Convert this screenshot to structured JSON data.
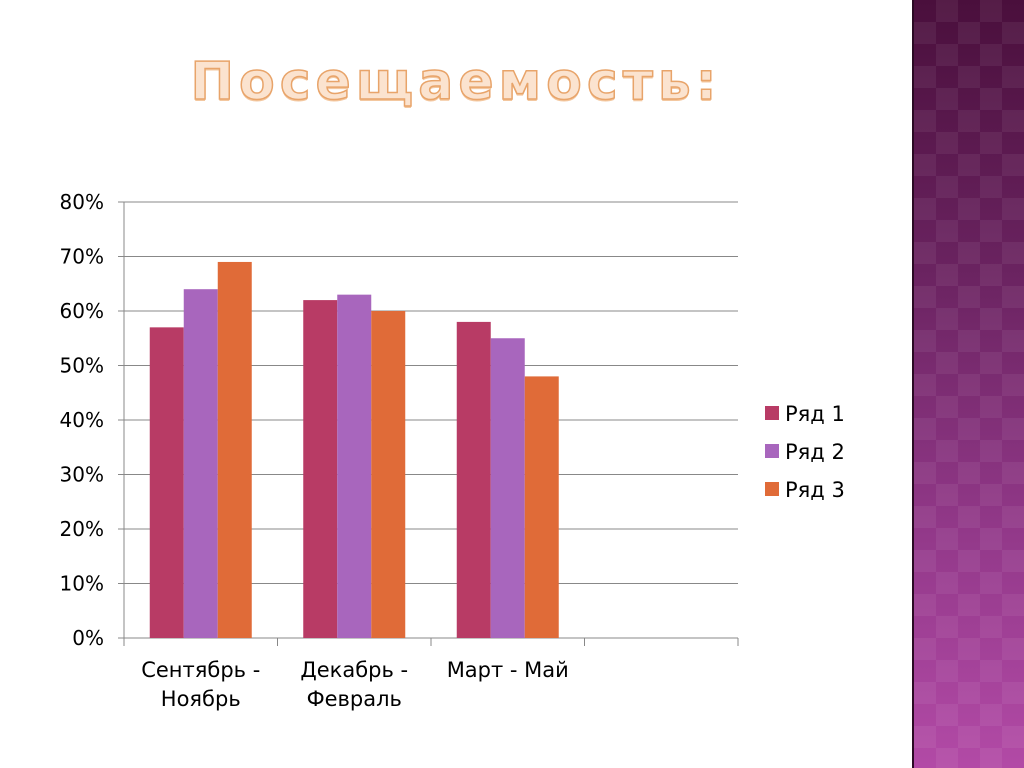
{
  "slide": {
    "title": "Посещаемость:"
  },
  "colors": {
    "series": [
      "#b83b65",
      "#a866bd",
      "#e06b38"
    ],
    "grid": "#888888",
    "band": "#6a2360"
  },
  "chart_data": {
    "type": "bar",
    "title": "",
    "xlabel": "",
    "ylabel": "",
    "ylim": [
      0,
      0.8
    ],
    "yticks": [
      "0%",
      "10%",
      "20%",
      "30%",
      "40%",
      "50%",
      "60%",
      "70%",
      "80%"
    ],
    "grid": true,
    "legend_position": "right",
    "categories": [
      [
        "Сентябрь -",
        "Ноябрь"
      ],
      [
        "Декабрь -",
        "Февраль"
      ],
      [
        "Март - Май"
      ],
      [
        ""
      ]
    ],
    "series": [
      {
        "name": "Ряд 1",
        "values": [
          0.57,
          0.62,
          0.58,
          null
        ]
      },
      {
        "name": "Ряд 2",
        "values": [
          0.64,
          0.63,
          0.55,
          null
        ]
      },
      {
        "name": "Ряд 3",
        "values": [
          0.69,
          0.6,
          0.48,
          null
        ]
      }
    ]
  }
}
